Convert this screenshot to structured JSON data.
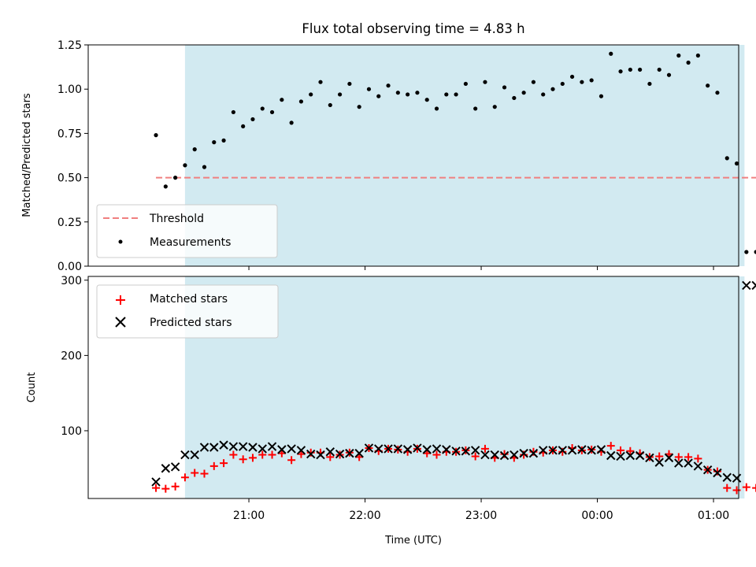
{
  "chart_data": [
    {
      "type": "scatter",
      "title": "Flux total observing time = 4.83 h",
      "ylabel": "Matched/Predicted stars",
      "xlabel": "",
      "ylim": [
        0,
        1.25
      ],
      "yticks": [
        0.0,
        0.25,
        0.5,
        0.75,
        1.0,
        1.25
      ],
      "ytick_labels": [
        "0.00",
        "0.25",
        "0.50",
        "0.75",
        "1.00",
        "1.25"
      ],
      "xlim_minutes": [
        -83,
        253
      ],
      "xticks": [
        "21:00",
        "22:00",
        "23:00",
        "00:00",
        "01:00"
      ],
      "shaded_interval": [
        "20:27",
        "01:16"
      ],
      "shade_color": "#add8e6",
      "threshold": {
        "name": "Threshold",
        "value": 0.5,
        "x_start": "20:12",
        "x_end": "01:22",
        "color": "#f08080"
      },
      "legend_position": "lower left",
      "series": [
        {
          "name": "Threshold"
        },
        {
          "name": "Measurements",
          "color": "#000000",
          "x": [
            "20:12",
            "20:17",
            "20:22",
            "20:27",
            "20:32",
            "20:37",
            "20:42",
            "20:47",
            "20:52",
            "20:57",
            "21:02",
            "21:07",
            "21:12",
            "21:17",
            "21:22",
            "21:27",
            "21:32",
            "21:37",
            "21:42",
            "21:47",
            "21:52",
            "21:57",
            "22:02",
            "22:07",
            "22:12",
            "22:17",
            "22:22",
            "22:27",
            "22:32",
            "22:37",
            "22:42",
            "22:47",
            "22:52",
            "22:57",
            "23:02",
            "23:07",
            "23:12",
            "23:17",
            "23:22",
            "23:27",
            "23:32",
            "23:37",
            "23:42",
            "23:47",
            "23:52",
            "23:57",
            "00:02",
            "00:07",
            "00:12",
            "00:17",
            "00:22",
            "00:27",
            "00:32",
            "00:37",
            "00:42",
            "00:47",
            "00:52",
            "00:57",
            "01:02",
            "01:07",
            "01:12",
            "01:17",
            "01:22"
          ],
          "y": [
            0.74,
            0.45,
            0.5,
            0.57,
            0.66,
            0.56,
            0.7,
            0.71,
            0.87,
            0.79,
            0.83,
            0.89,
            0.87,
            0.94,
            0.81,
            0.93,
            0.97,
            1.04,
            0.91,
            0.97,
            1.03,
            0.9,
            1.0,
            0.96,
            1.02,
            0.98,
            0.97,
            0.98,
            0.94,
            0.89,
            0.97,
            0.97,
            1.03,
            0.89,
            1.04,
            0.9,
            1.01,
            0.95,
            0.98,
            1.04,
            0.97,
            1.0,
            1.03,
            1.07,
            1.04,
            1.05,
            0.96,
            1.2,
            1.1,
            1.11,
            1.11,
            1.03,
            1.11,
            1.08,
            1.19,
            1.15,
            1.19,
            1.02,
            0.98,
            0.61,
            0.58,
            0.08,
            0.08
          ]
        }
      ]
    },
    {
      "type": "scatter",
      "title": "",
      "ylabel": "Count",
      "xlabel": "Time (UTC)",
      "ylim": [
        10,
        305
      ],
      "yticks": [
        100,
        200,
        300
      ],
      "ytick_labels": [
        "100",
        "200",
        "300"
      ],
      "xticks": [
        "21:00",
        "22:00",
        "23:00",
        "00:00",
        "01:00"
      ],
      "legend_position": "upper left",
      "series": [
        {
          "name": "Matched stars",
          "marker": "+",
          "color": "#ff0000",
          "x": [
            "20:12",
            "20:17",
            "20:22",
            "20:27",
            "20:32",
            "20:37",
            "20:42",
            "20:47",
            "20:52",
            "20:57",
            "21:02",
            "21:07",
            "21:12",
            "21:17",
            "21:22",
            "21:27",
            "21:32",
            "21:37",
            "21:42",
            "21:47",
            "21:52",
            "21:57",
            "22:02",
            "22:07",
            "22:12",
            "22:17",
            "22:22",
            "22:27",
            "22:32",
            "22:37",
            "22:42",
            "22:47",
            "22:52",
            "22:57",
            "23:02",
            "23:07",
            "23:12",
            "23:17",
            "23:22",
            "23:27",
            "23:32",
            "23:37",
            "23:42",
            "23:47",
            "23:52",
            "23:57",
            "00:02",
            "00:07",
            "00:12",
            "00:17",
            "00:22",
            "00:27",
            "00:32",
            "00:37",
            "00:42",
            "00:47",
            "00:52",
            "00:57",
            "01:02",
            "01:07",
            "01:12",
            "01:17",
            "01:22"
          ],
          "y": [
            24,
            23,
            26,
            38,
            44,
            43,
            53,
            57,
            68,
            62,
            64,
            68,
            68,
            70,
            61,
            69,
            71,
            71,
            65,
            68,
            71,
            65,
            77,
            73,
            76,
            75,
            72,
            76,
            70,
            68,
            72,
            72,
            74,
            66,
            76,
            64,
            69,
            64,
            68,
            72,
            71,
            74,
            72,
            77,
            74,
            75,
            72,
            80,
            74,
            73,
            70,
            65,
            66,
            69,
            65,
            65,
            63,
            48,
            46,
            24,
            21,
            25,
            24
          ]
        },
        {
          "name": "Predicted stars",
          "marker": "x",
          "color": "#000000",
          "x": [
            "20:12",
            "20:17",
            "20:22",
            "20:27",
            "20:32",
            "20:37",
            "20:42",
            "20:47",
            "20:52",
            "20:57",
            "21:02",
            "21:07",
            "21:12",
            "21:17",
            "21:22",
            "21:27",
            "21:32",
            "21:37",
            "21:42",
            "21:47",
            "21:52",
            "21:57",
            "22:02",
            "22:07",
            "22:12",
            "22:17",
            "22:22",
            "22:27",
            "22:32",
            "22:37",
            "22:42",
            "22:47",
            "22:52",
            "22:57",
            "23:02",
            "23:07",
            "23:12",
            "23:17",
            "23:22",
            "23:27",
            "23:32",
            "23:37",
            "23:42",
            "23:47",
            "23:52",
            "23:57",
            "00:02",
            "00:07",
            "00:12",
            "00:17",
            "00:22",
            "00:27",
            "00:32",
            "00:37",
            "00:42",
            "00:47",
            "00:52",
            "00:57",
            "01:02",
            "01:07",
            "01:12",
            "01:17",
            "01:22"
          ],
          "y": [
            32,
            50,
            52,
            68,
            68,
            78,
            78,
            81,
            79,
            79,
            78,
            76,
            79,
            75,
            76,
            74,
            69,
            68,
            72,
            69,
            70,
            70,
            77,
            76,
            76,
            76,
            75,
            77,
            75,
            76,
            75,
            73,
            73,
            74,
            68,
            68,
            67,
            68,
            70,
            70,
            74,
            74,
            74,
            74,
            75,
            74,
            75,
            67,
            66,
            67,
            67,
            64,
            58,
            64,
            57,
            57,
            53,
            48,
            44,
            38,
            37,
            293,
            293
          ]
        }
      ]
    }
  ]
}
